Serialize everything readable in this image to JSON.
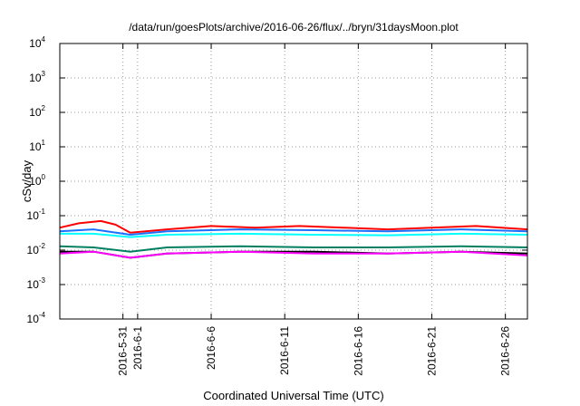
{
  "chart_data": {
    "type": "line",
    "title": "/data/run/goesPlots/archive/2016-06-26/flux/../bryn/31daysMoon.plot",
    "xlabel": "Coordinated Universal Time (UTC)",
    "ylabel": "cSv/day",
    "y_scale": "log",
    "ylim": [
      0.0001,
      10000
    ],
    "xlim": [
      "2016-05-26T17:00",
      "2016-06-27T12:00"
    ],
    "y_ticks": [
      {
        "value": 0.0001,
        "base": "10",
        "exp": "-4"
      },
      {
        "value": 0.001,
        "base": "10",
        "exp": "-3"
      },
      {
        "value": 0.01,
        "base": "10",
        "exp": "-2"
      },
      {
        "value": 0.1,
        "base": "10",
        "exp": "-1"
      },
      {
        "value": 1,
        "base": "10",
        "exp": "0"
      },
      {
        "value": 10,
        "base": "10",
        "exp": "1"
      },
      {
        "value": 100,
        "base": "10",
        "exp": "2"
      },
      {
        "value": 1000,
        "base": "10",
        "exp": "3"
      },
      {
        "value": 10000,
        "base": "10",
        "exp": "4"
      }
    ],
    "x_ticks": [
      {
        "date": "2016-05-31",
        "label": "2016-5-31"
      },
      {
        "date": "2016-06-01",
        "label": "2016-6-1"
      },
      {
        "date": "2016-06-06",
        "label": "2016-6-6"
      },
      {
        "date": "2016-06-11",
        "label": "2016-6-11"
      },
      {
        "date": "2016-06-16",
        "label": "2016-6-16"
      },
      {
        "date": "2016-06-21",
        "label": "2016-6-21"
      },
      {
        "date": "2016-06-26",
        "label": "2016-6-26"
      }
    ],
    "grid": true,
    "series": [
      {
        "color": "#ff0000",
        "date": [
          "2016-05-26T17:00",
          "2016-05-28T00:00",
          "2016-05-29T12:00",
          "2016-05-30T12:00",
          "2016-05-31T12:00",
          "2016-06-03T00:00",
          "2016-06-06T00:00",
          "2016-06-09T00:00",
          "2016-06-12T00:00",
          "2016-06-15T00:00",
          "2016-06-18T00:00",
          "2016-06-21T00:00",
          "2016-06-24T00:00",
          "2016-06-27T12:00"
        ],
        "value": [
          0.045,
          0.06,
          0.07,
          0.055,
          0.032,
          0.04,
          0.05,
          0.045,
          0.05,
          0.045,
          0.04,
          0.045,
          0.05,
          0.04
        ]
      },
      {
        "color": "#00ffff",
        "date": [
          "2016-05-26T17:00",
          "2016-05-29T00:00",
          "2016-05-31T12:00",
          "2016-06-03T00:00",
          "2016-06-08T00:00",
          "2016-06-13T00:00",
          "2016-06-18T00:00",
          "2016-06-23T00:00",
          "2016-06-27T12:00"
        ],
        "value": [
          0.03,
          0.03,
          0.024,
          0.028,
          0.03,
          0.028,
          0.027,
          0.03,
          0.028
        ]
      },
      {
        "color": "#1a70ff",
        "date": [
          "2016-05-26T17:00",
          "2016-05-29T00:00",
          "2016-05-31T12:00",
          "2016-06-03T00:00",
          "2016-06-08T00:00",
          "2016-06-13T00:00",
          "2016-06-18T00:00",
          "2016-06-23T00:00",
          "2016-06-27T12:00"
        ],
        "value": [
          0.035,
          0.04,
          0.028,
          0.035,
          0.04,
          0.038,
          0.035,
          0.04,
          0.035
        ]
      },
      {
        "color": "#008060",
        "date": [
          "2016-05-26T17:00",
          "2016-05-29T00:00",
          "2016-05-31T12:00",
          "2016-06-03T00:00",
          "2016-06-08T00:00",
          "2016-06-13T00:00",
          "2016-06-18T00:00",
          "2016-06-23T00:00",
          "2016-06-27T12:00"
        ],
        "value": [
          0.013,
          0.012,
          0.009,
          0.012,
          0.013,
          0.012,
          0.012,
          0.013,
          0.012
        ]
      },
      {
        "color": "#000000",
        "date": [
          "2016-05-26T17:00",
          "2016-05-29T00:00",
          "2016-05-31T12:00",
          "2016-06-03T00:00",
          "2016-06-08T00:00",
          "2016-06-13T00:00",
          "2016-06-18T00:00",
          "2016-06-23T00:00",
          "2016-06-27T12:00"
        ],
        "value": [
          0.009,
          0.009,
          0.006,
          0.008,
          0.009,
          0.009,
          0.008,
          0.009,
          0.008
        ]
      },
      {
        "color": "#ff00ff",
        "date": [
          "2016-05-26T17:00",
          "2016-05-29T00:00",
          "2016-05-31T12:00",
          "2016-06-03T00:00",
          "2016-06-08T00:00",
          "2016-06-13T00:00",
          "2016-06-18T00:00",
          "2016-06-23T00:00",
          "2016-06-27T12:00"
        ],
        "value": [
          0.008,
          0.009,
          0.006,
          0.008,
          0.009,
          0.008,
          0.008,
          0.009,
          0.007
        ]
      }
    ]
  }
}
